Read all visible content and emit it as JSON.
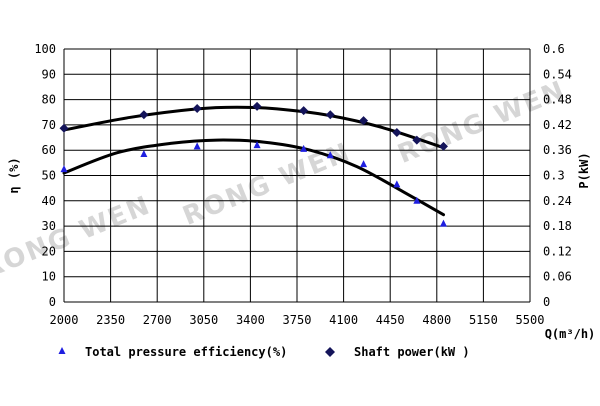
{
  "chart_data": {
    "type": "scatter",
    "watermark": "RONG WEN",
    "x_axis": {
      "label": "Q(m³/h)",
      "range": [
        2000,
        5500
      ],
      "ticks": [
        "2000",
        "2350",
        "2700",
        "3050",
        "3400",
        "3750",
        "4100",
        "4450",
        "4800",
        "5150",
        "5500"
      ]
    },
    "y_left_axis": {
      "label": "η (%)",
      "range": [
        0,
        100
      ],
      "ticks": [
        "0",
        "10",
        "20",
        "30",
        "40",
        "50",
        "60",
        "70",
        "80",
        "90",
        "100"
      ]
    },
    "y_right_axis": {
      "label": "P(kW)",
      "range": [
        0,
        0.6
      ],
      "ticks": [
        "0",
        "0.06",
        "0.12",
        "0.18",
        "0.24",
        "0.3",
        "0.36",
        "0.42",
        "0.48",
        "0.54",
        "0.6"
      ]
    },
    "grid": true,
    "legend_placement": "bottom",
    "series": [
      {
        "name": "Total pressure efficiency(%)",
        "axis": "left",
        "marker": "triangle",
        "color": "#1f1fe0",
        "x": [
          2000,
          2600,
          3000,
          3450,
          3800,
          4000,
          4250,
          4500,
          4650,
          4850
        ],
        "y": [
          52.5,
          58.5,
          61.5,
          62,
          60.5,
          58,
          54.5,
          46.5,
          40,
          31
        ],
        "fit_curve": {
          "x": [
            2000,
            2400,
            2800,
            3150,
            3500,
            3850,
            4200,
            4550,
            4850
          ],
          "y": [
            51,
            59,
            62.7,
            64,
            63.2,
            60,
            53.5,
            43.5,
            34.5
          ]
        }
      },
      {
        "name": "Shaft power(kW )",
        "axis": "right",
        "marker": "diamond",
        "color": "#14145a",
        "x": [
          2000,
          2600,
          3000,
          3450,
          3800,
          4000,
          4250,
          4500,
          4650,
          4850
        ],
        "y": [
          0.412,
          0.444,
          0.459,
          0.464,
          0.454,
          0.444,
          0.43,
          0.402,
          0.384,
          0.369
        ],
        "fit_curve": {
          "x": [
            2000,
            2500,
            3000,
            3300,
            3600,
            4000,
            4400,
            4850
          ],
          "y": [
            0.408,
            0.438,
            0.458,
            0.462,
            0.458,
            0.442,
            0.413,
            0.366
          ]
        }
      }
    ]
  }
}
